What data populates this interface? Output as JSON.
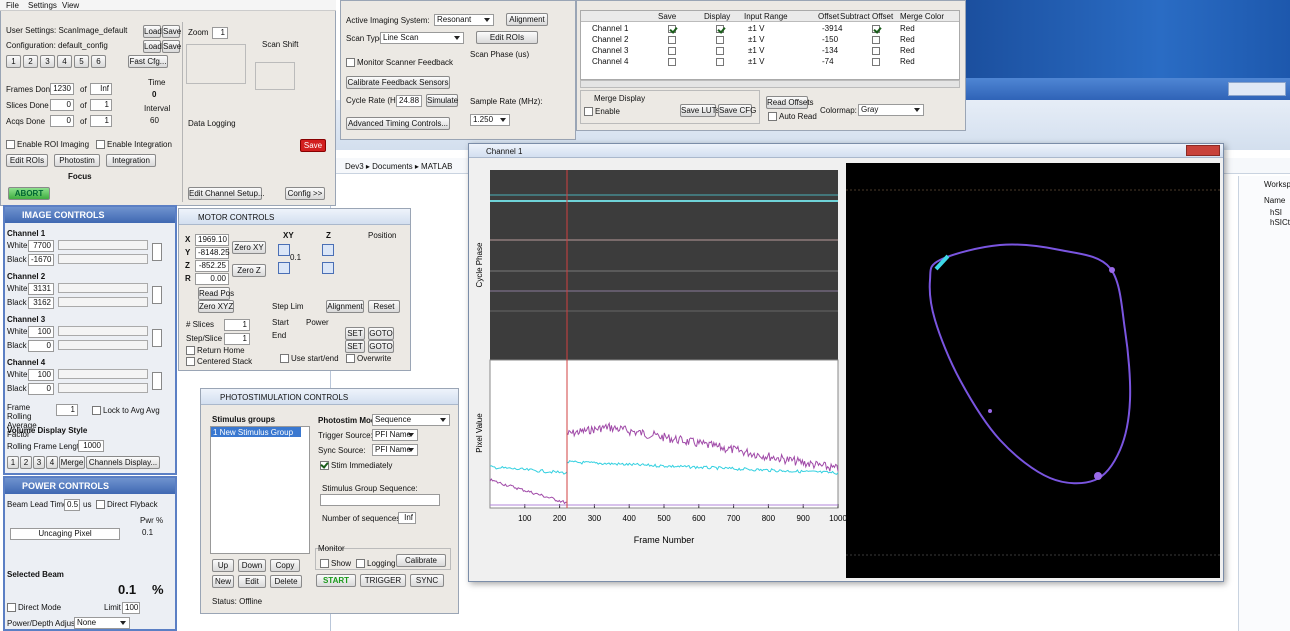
{
  "menu": [
    "File",
    "Settings",
    "View"
  ],
  "main": {
    "user_settings": "User Settings: ScanImage_default",
    "configuration": "Configuration: default_config",
    "load": "Load",
    "save": "Save",
    "cfg_buttons": [
      "1",
      "2",
      "3",
      "4",
      "5",
      "6"
    ],
    "fast_cfg": "Fast Cfg...",
    "frames_done": "Frames Done",
    "frames_value": "1230",
    "frames_total": "Inf",
    "slices_done": "Slices Done",
    "slices_value": "0",
    "slices_total": "1",
    "acqs_done": "Acqs Done",
    "acqs_value": "0",
    "acqs_total": "1",
    "of": "of",
    "time": "Time",
    "time_value": "0",
    "interval": "Interval",
    "interval_value": "60",
    "zoom": "Zoom",
    "zoom_value": "1",
    "scan_shift": "Scan Shift",
    "data_logging": "Data Logging",
    "save_button": "Save",
    "enable_roi": "Enable ROI Imaging",
    "enable_integration": "Enable Integration",
    "edit_rois": "Edit ROIs",
    "photostim": "Photostim",
    "integration": "Integration",
    "focus": "Focus",
    "abort": "ABORT",
    "edit_channel_setup": "Edit Channel Setup...",
    "config": "Config >>"
  },
  "imaging": {
    "active_system": "Active Imaging System:",
    "system": "Resonant",
    "alignment": "Alignment",
    "scan_type": "Scan Type:",
    "scan_type_value": "Line Scan",
    "edit_rois": "Edit ROIs",
    "monitor": "Monitor Scanner Feedback",
    "scan_phase": "Scan Phase (us)",
    "calibrate": "Calibrate Feedback Sensors",
    "cycle_rate": "Cycle Rate (Hz):",
    "cycle_rate_value": "24.88",
    "simulate": "Simulate",
    "sample_rate": "Sample Rate (MHz):",
    "sample_rate_value": "1.250",
    "advanced": "Advanced Timing Controls..."
  },
  "channels": {
    "headers": [
      "Save",
      "Display",
      "Input Range",
      "Offset",
      "Subtract Offset",
      "Merge Color"
    ],
    "rows": [
      {
        "name": "Channel 1",
        "save": true,
        "display": true,
        "range": "±1 V",
        "offset": "-3914",
        "subtract": true,
        "color": "Red"
      },
      {
        "name": "Channel 2",
        "save": false,
        "display": false,
        "range": "±1 V",
        "offset": "-150",
        "subtract": false,
        "color": "Red"
      },
      {
        "name": "Channel 3",
        "save": false,
        "display": false,
        "range": "±1 V",
        "offset": "-134",
        "subtract": false,
        "color": "Red"
      },
      {
        "name": "Channel 4",
        "save": false,
        "display": false,
        "range": "±1 V",
        "offset": "-74",
        "subtract": false,
        "color": "Red"
      }
    ],
    "merge_display": "Merge Display",
    "enable": "Enable",
    "save_luts": "Save LUTs",
    "save_cfg": "Save CFG",
    "read_offsets": "Read Offsets",
    "auto_read": "Auto Read",
    "colormap": "Colormap:",
    "colormap_value": "Gray"
  },
  "matlab": {
    "path": "Dev3 ▸ Documents ▸ MATLAB",
    "workspace": "Workspace",
    "name": "Name",
    "vars": [
      "hSI",
      "hSICtl"
    ]
  },
  "image_controls": {
    "title": "IMAGE CONTROLS",
    "channels": [
      {
        "name": "Channel 1",
        "white": "7700",
        "black": "-1670"
      },
      {
        "name": "Channel 2",
        "white": "3131",
        "black": "3162"
      },
      {
        "name": "Channel 3",
        "white": "100",
        "black": "0"
      },
      {
        "name": "Channel 4",
        "white": "100",
        "black": "0"
      }
    ],
    "white": "White",
    "black": "Black",
    "rolling_avg": "Frame Rolling Average Factor",
    "rolling_avg_value": "1",
    "lock": "Lock to Avg Avg",
    "volume_style": "Volume Display Style",
    "rolling_length": "Rolling Frame Length",
    "rolling_length_value": "1000",
    "channel_buttons": [
      "1",
      "2",
      "3",
      "4",
      "Merge"
    ],
    "channels_display": "Channels Display..."
  },
  "power": {
    "title": "POWER CONTROLS",
    "beam_lead": "Beam Lead Time",
    "beam_lead_value": "0.5",
    "us": "us",
    "direct_flyback": "Direct Flyback",
    "pwr": "Pwr %",
    "pwr_value": "0.1",
    "beam": "Uncaging Pixel",
    "selected_beam": "Selected Beam",
    "percent_value": "0.1",
    "percent": "%",
    "direct_mode": "Direct Mode",
    "limit": "Limit",
    "limit_value": "100",
    "power_depth": "Power/Depth Adjust",
    "power_depth_value": "None"
  },
  "motor": {
    "title": "MOTOR CONTROLS",
    "axes": [
      {
        "label": "X",
        "value": "1969.10"
      },
      {
        "label": "Y",
        "value": "-8148.25"
      },
      {
        "label": "Z",
        "value": "-852.25"
      },
      {
        "label": "R",
        "value": "0.00"
      }
    ],
    "zero_xy": "Zero XY",
    "zero_z": "Zero Z",
    "xy": "XY",
    "z": "Z",
    "step": "0.1",
    "position": "Position",
    "read_pos": "Read Pos",
    "zero_all": "Zero XYZ",
    "step_limit": "Step Lim",
    "alignment": "Alignment",
    "reset": "Reset",
    "slices": "# Slices",
    "slices_value": "1",
    "step_slice": "Step/Slice",
    "step_slice_value": "1",
    "return_home": "Return Home",
    "centered_stack": "Centered Stack",
    "start": "Start",
    "end": "End",
    "power": "Power",
    "set": "SET",
    "goto": "GOTO",
    "use_start_end": "Use start/end",
    "overwrite": "Overwrite"
  },
  "photostim": {
    "title": "PHOTOSTIMULATION CONTROLS",
    "groups": "Stimulus groups",
    "group_list": [
      "1 New Stimulus Group"
    ],
    "mode": "Photostim Mode:",
    "mode_value": "Sequence",
    "trigger": "Trigger Source:",
    "trigger_value": "PFI Name",
    "sync": "Sync Source:",
    "sync_value": "PFI Name",
    "stim_immediately": "Stim Immediately",
    "sequence": "Stimulus Group Sequence:",
    "num_sequences": "Number of sequences:",
    "num_sequences_value": "Inf",
    "monitor": "Monitor",
    "show": "Show",
    "logging": "Logging",
    "calibrate": "Calibrate",
    "up": "Up",
    "down": "Down",
    "copy": "Copy",
    "new": "New",
    "edit": "Edit",
    "delete": "Delete",
    "start": "START",
    "trigger_btn": "TRIGGER",
    "sync_btn": "SYNC",
    "status": "Status: Offline"
  },
  "figure": {
    "title": "Channel 1",
    "cycle_phase": "Cycle Phase",
    "pixel_value": "Pixel Value",
    "xlabel": "Frame Number",
    "xlim": [
      0,
      1000
    ],
    "xticks": [
      100,
      200,
      300,
      400,
      500,
      600,
      700,
      800,
      900,
      1000
    ]
  }
}
